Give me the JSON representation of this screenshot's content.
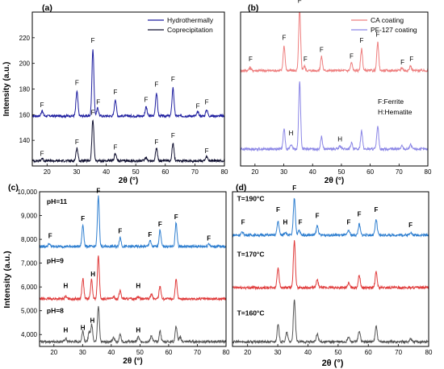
{
  "figure": {
    "shared_xlabel": "2θ (°)",
    "shared_ylabel": "Intensity (a.u.)"
  },
  "chart_data": [
    {
      "id": "a",
      "type": "line",
      "panel_label": "(a)",
      "title": "",
      "xlabel": "2θ (°)",
      "ylabel": "Intensity (a.u.)",
      "xlim": [
        15,
        80
      ],
      "ylim": [
        120,
        240
      ],
      "x_ticks": [
        20,
        30,
        40,
        50,
        60,
        70,
        80
      ],
      "y_ticks": [
        140,
        160,
        180,
        200,
        220
      ],
      "grid": false,
      "legend": "top-right",
      "series": [
        {
          "name": "Hydrothermally",
          "color": "#1f1fa0",
          "baseline": 159,
          "peaks": [
            [
              18.3,
              4
            ],
            [
              30.1,
              19
            ],
            [
              35.5,
              52
            ],
            [
              37.1,
              6
            ],
            [
              43.1,
              13
            ],
            [
              53.5,
              7
            ],
            [
              57.0,
              18
            ],
            [
              62.6,
              22
            ],
            [
              71.0,
              3
            ],
            [
              74.0,
              5
            ]
          ]
        },
        {
          "name": "Coprecipitation",
          "color": "#101030",
          "baseline": 124,
          "peaks": [
            [
              18.3,
              2
            ],
            [
              30.1,
              10
            ],
            [
              35.5,
              32
            ],
            [
              43.1,
              6
            ],
            [
              53.5,
              3
            ],
            [
              57.0,
              10
            ],
            [
              62.6,
              14
            ],
            [
              74.0,
              3
            ]
          ]
        }
      ],
      "annotations": [
        {
          "text": "F",
          "x": 18.3,
          "y": 166
        },
        {
          "text": "F",
          "x": 30.1,
          "y": 183
        },
        {
          "text": "F",
          "x": 35.5,
          "y": 216
        },
        {
          "text": "F",
          "x": 37.3,
          "y": 168
        },
        {
          "text": "F",
          "x": 43.1,
          "y": 176
        },
        {
          "text": "F",
          "x": 53.5,
          "y": 170
        },
        {
          "text": "F",
          "x": 57.0,
          "y": 182
        },
        {
          "text": "F",
          "x": 62.6,
          "y": 186
        },
        {
          "text": "F",
          "x": 71.0,
          "y": 165
        },
        {
          "text": "F",
          "x": 74.0,
          "y": 168
        },
        {
          "text": "F",
          "x": 18.3,
          "y": 128
        },
        {
          "text": "F",
          "x": 30.1,
          "y": 137
        },
        {
          "text": "F",
          "x": 35.5,
          "y": 160
        },
        {
          "text": "F",
          "x": 43.1,
          "y": 133
        },
        {
          "text": "F",
          "x": 57.0,
          "y": 137
        },
        {
          "text": "F",
          "x": 62.6,
          "y": 142
        },
        {
          "text": "F",
          "x": 74.0,
          "y": 130
        }
      ]
    },
    {
      "id": "b",
      "type": "line",
      "panel_label": "(b)",
      "title": "",
      "xlabel": "2θ (°)",
      "ylabel": "",
      "xlim": [
        15,
        80
      ],
      "ylim": [
        0,
        100
      ],
      "x_ticks": [
        20,
        30,
        40,
        50,
        60,
        70,
        80
      ],
      "y_ticks": [],
      "grid": false,
      "legend": "top-right",
      "series": [
        {
          "name": "CA coating",
          "color": "#ee7f7f",
          "baseline": 62,
          "peaks": [
            [
              18.3,
              2
            ],
            [
              30.1,
              16
            ],
            [
              35.5,
              40
            ],
            [
              37.1,
              3
            ],
            [
              43.1,
              9
            ],
            [
              53.5,
              5
            ],
            [
              57.0,
              14
            ],
            [
              62.6,
              18
            ],
            [
              71.0,
              2
            ],
            [
              74.0,
              3
            ]
          ]
        },
        {
          "name": "PF-127 coating",
          "color": "#8c87e6",
          "baseline": 11,
          "peaks": [
            [
              30.1,
              13
            ],
            [
              32.5,
              3
            ],
            [
              35.5,
              44
            ],
            [
              43.1,
              8
            ],
            [
              49.5,
              2
            ],
            [
              53.5,
              4
            ],
            [
              57.0,
              12
            ],
            [
              62.6,
              15
            ],
            [
              71.0,
              2
            ],
            [
              74.0,
              3
            ]
          ]
        }
      ],
      "annotations": [
        {
          "text": "F",
          "x": 18.5,
          "y": 68
        },
        {
          "text": "F",
          "x": 30.1,
          "y": 82
        },
        {
          "text": "F",
          "x": 35.5,
          "y": 106
        },
        {
          "text": "F",
          "x": 37.5,
          "y": 68
        },
        {
          "text": "F",
          "x": 43.1,
          "y": 74
        },
        {
          "text": "F",
          "x": 53.5,
          "y": 70
        },
        {
          "text": "F",
          "x": 57.0,
          "y": 80
        },
        {
          "text": "F",
          "x": 62.6,
          "y": 84
        },
        {
          "text": "F",
          "x": 71.2,
          "y": 66
        },
        {
          "text": "F",
          "x": 74.3,
          "y": 68
        },
        {
          "text": "H",
          "x": 32.5,
          "y": 20
        },
        {
          "text": "H",
          "x": 49.5,
          "y": 16
        }
      ],
      "notes": [
        "F:Ferrite",
        "H:Hematite"
      ]
    },
    {
      "id": "c",
      "type": "line",
      "panel_label": "(c)",
      "title": "",
      "xlabel": "2θ (°)",
      "ylabel": "Intensity (a.u.)",
      "xlim": [
        15,
        80
      ],
      "ylim": [
        3500,
        10000
      ],
      "x_ticks": [
        20,
        30,
        40,
        50,
        60,
        70,
        80
      ],
      "y_ticks": [
        4000,
        5000,
        6000,
        7000,
        8000,
        9000,
        10000
      ],
      "y_tick_labels": [
        "4,000",
        "5,000",
        "6,000",
        "7,000",
        "8,000",
        "9,000",
        "10,000"
      ],
      "grid": false,
      "legend": "",
      "series": [
        {
          "name": "pH=11",
          "color": "#2f7fd0",
          "baseline": 7700,
          "peaks": [
            [
              18.3,
              120
            ],
            [
              30.1,
              900
            ],
            [
              35.5,
              2100
            ],
            [
              43.1,
              380
            ],
            [
              53.5,
              250
            ],
            [
              57.0,
              700
            ],
            [
              62.6,
              1000
            ],
            [
              74.0,
              130
            ]
          ]
        },
        {
          "name": "pH=9",
          "color": "#e03b3b",
          "baseline": 5500,
          "peaks": [
            [
              24.1,
              100
            ],
            [
              30.1,
              850
            ],
            [
              33.1,
              800
            ],
            [
              35.5,
              1800
            ],
            [
              40.8,
              100
            ],
            [
              43.1,
              350
            ],
            [
              49.4,
              100
            ],
            [
              54.0,
              200
            ],
            [
              57.0,
              550
            ],
            [
              62.6,
              800
            ]
          ]
        },
        {
          "name": "pH=8",
          "color": "#555555",
          "baseline": 3700,
          "peaks": [
            [
              24.1,
              120
            ],
            [
              30.1,
              450
            ],
            [
              32.3,
              400
            ],
            [
              33.2,
              700
            ],
            [
              35.5,
              1500
            ],
            [
              40.8,
              150
            ],
            [
              43.1,
              300
            ],
            [
              49.4,
              200
            ],
            [
              54.0,
              250
            ],
            [
              57.0,
              450
            ],
            [
              62.6,
              650
            ],
            [
              64.0,
              200
            ]
          ]
        }
      ],
      "annotations": [
        {
          "text": "pH=11",
          "x": 17.5,
          "y": 9500
        },
        {
          "text": "pH=9",
          "x": 17.5,
          "y": 7000
        },
        {
          "text": "pH=8",
          "x": 17.5,
          "y": 4900
        },
        {
          "text": "F",
          "x": 18.7,
          "y": 8050
        },
        {
          "text": "F",
          "x": 30.1,
          "y": 8780
        },
        {
          "text": "F",
          "x": 35.5,
          "y": 9950
        },
        {
          "text": "F",
          "x": 43.1,
          "y": 8250
        },
        {
          "text": "F",
          "x": 53.5,
          "y": 8100
        },
        {
          "text": "F",
          "x": 57.0,
          "y": 8550
        },
        {
          "text": "F",
          "x": 62.6,
          "y": 8850
        },
        {
          "text": "F",
          "x": 74.0,
          "y": 7950
        },
        {
          "text": "H",
          "x": 24.1,
          "y": 5950
        },
        {
          "text": "H",
          "x": 33.6,
          "y": 6450
        },
        {
          "text": "H",
          "x": 49.4,
          "y": 5950
        },
        {
          "text": "H",
          "x": 24.1,
          "y": 4100
        },
        {
          "text": "H",
          "x": 30.1,
          "y": 4200
        },
        {
          "text": "H",
          "x": 33.4,
          "y": 4500
        },
        {
          "text": "H",
          "x": 49.4,
          "y": 4100
        }
      ]
    },
    {
      "id": "d",
      "type": "line",
      "panel_label": "(d)",
      "title": "",
      "xlabel": "2θ (°)",
      "ylabel": "",
      "xlim": [
        15,
        80
      ],
      "ylim": [
        0,
        100
      ],
      "x_ticks": [
        20,
        30,
        40,
        50,
        60,
        70,
        80
      ],
      "y_ticks": [],
      "grid": false,
      "legend": "",
      "series": [
        {
          "name": "T=190°C",
          "color": "#2f7fd0",
          "baseline": 72,
          "peaks": [
            [
              18.3,
              2
            ],
            [
              30.1,
              9
            ],
            [
              32.5,
              2
            ],
            [
              35.5,
              24
            ],
            [
              37.1,
              3
            ],
            [
              43.1,
              6
            ],
            [
              53.5,
              3
            ],
            [
              57.0,
              7
            ],
            [
              62.6,
              10
            ],
            [
              74.0,
              2
            ]
          ]
        },
        {
          "name": "T=170°C",
          "color": "#e03b3b",
          "baseline": 38,
          "peaks": [
            [
              30.1,
              13
            ],
            [
              35.5,
              30
            ],
            [
              43.1,
              5
            ],
            [
              53.5,
              3
            ],
            [
              57.0,
              8
            ],
            [
              62.6,
              10
            ]
          ]
        },
        {
          "name": "T=160°C",
          "color": "#555555",
          "baseline": 3,
          "peaks": [
            [
              30.1,
              11
            ],
            [
              33.0,
              6
            ],
            [
              35.5,
              27
            ],
            [
              43.1,
              5
            ],
            [
              53.5,
              3
            ],
            [
              57.0,
              7
            ],
            [
              62.6,
              10
            ],
            [
              74.0,
              2
            ]
          ]
        }
      ],
      "annotations": [
        {
          "text": "T=190°C",
          "x": 16.5,
          "y": 94
        },
        {
          "text": "T=170°C",
          "x": 16.5,
          "y": 58
        },
        {
          "text": "T=160°C",
          "x": 16.5,
          "y": 20
        },
        {
          "text": "F",
          "x": 18.5,
          "y": 79
        },
        {
          "text": "F",
          "x": 30.1,
          "y": 87
        },
        {
          "text": "H",
          "x": 32.5,
          "y": 79
        },
        {
          "text": "F",
          "x": 35.5,
          "y": 101
        },
        {
          "text": "F",
          "x": 37.5,
          "y": 79
        },
        {
          "text": "F",
          "x": 43.1,
          "y": 83
        },
        {
          "text": "F",
          "x": 53.5,
          "y": 79
        },
        {
          "text": "F",
          "x": 57.0,
          "y": 84
        },
        {
          "text": "F",
          "x": 62.6,
          "y": 87
        },
        {
          "text": "F",
          "x": 74.0,
          "y": 77
        }
      ]
    }
  ]
}
